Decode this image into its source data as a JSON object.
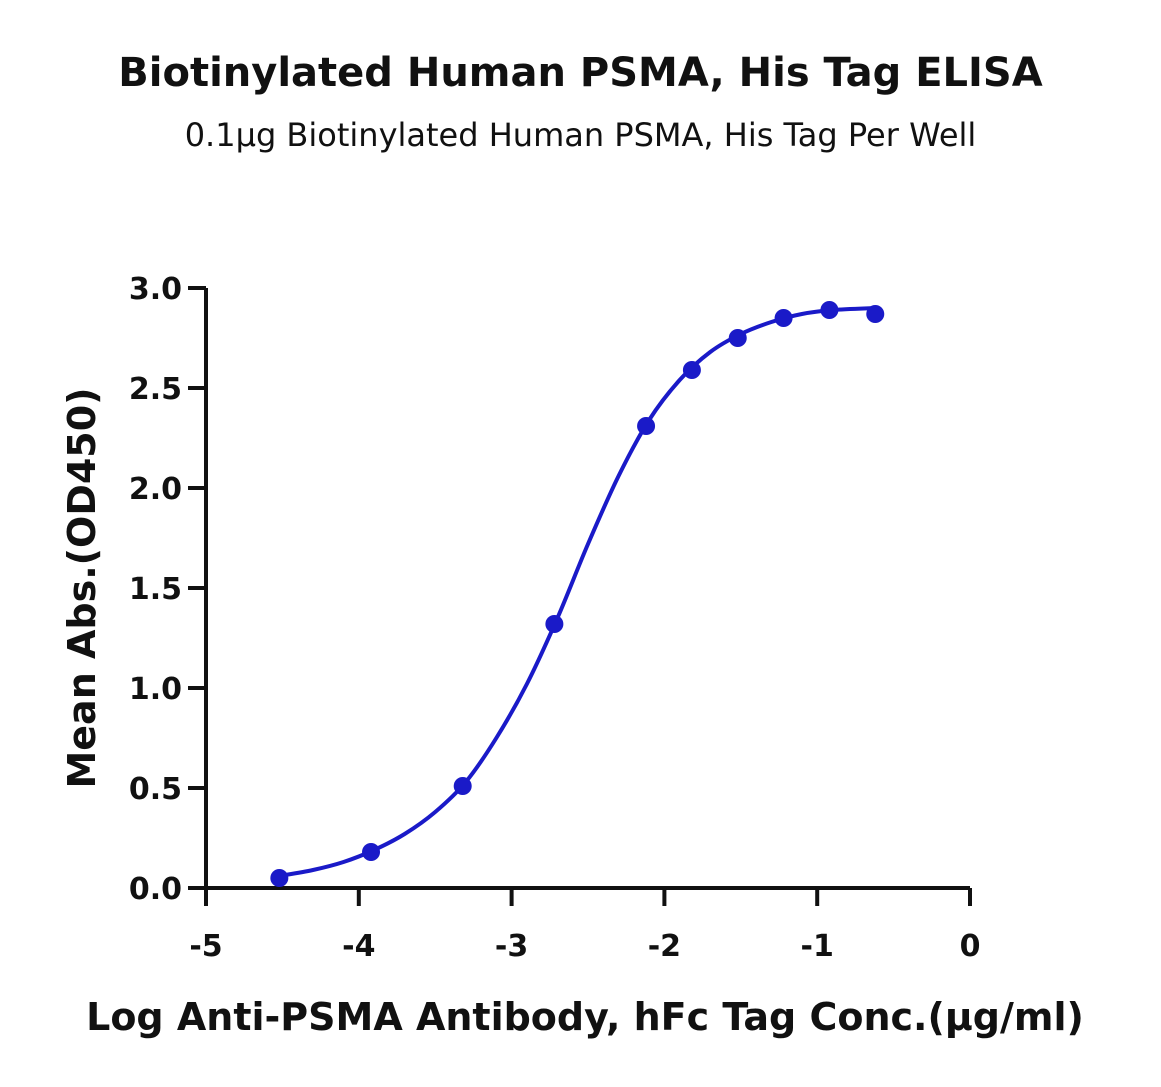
{
  "chart_data": {
    "type": "scatter",
    "title": "Biotinylated Human PSMA, His Tag ELISA",
    "subtitle": "0.1μg Biotinylated Human PSMA, His Tag Per Well",
    "xlabel": "Log Anti-PSMA Antibody, hFc Tag Conc.(μg/ml)",
    "ylabel": "Mean Abs.(OD450)",
    "xlim": [
      -5,
      0
    ],
    "ylim": [
      0,
      3.0
    ],
    "x_ticks": [
      -5,
      -4,
      -3,
      -2,
      -1,
      0
    ],
    "x_tick_labels": [
      "-5",
      "-4",
      "-3",
      "-2",
      "-1",
      "0"
    ],
    "y_ticks": [
      0,
      0.5,
      1.0,
      1.5,
      2.0,
      2.5,
      3.0
    ],
    "y_tick_labels": [
      "0.0",
      "0.5",
      "1.0",
      "1.5",
      "2.0",
      "2.5",
      "3.0"
    ],
    "grid": false,
    "legend": "none",
    "color": "#1a1ac8",
    "series": [
      {
        "x": [
          -4.52,
          -3.92,
          -3.32,
          -2.72,
          -2.12,
          -1.82,
          -1.52,
          -1.22,
          -0.92,
          -0.62
        ],
        "y": [
          0.05,
          0.18,
          0.51,
          1.32,
          2.31,
          2.59,
          2.75,
          2.85,
          2.89,
          2.87
        ]
      }
    ],
    "fit_curve": {
      "x": [
        -4.52,
        -4.3,
        -4.1,
        -3.9,
        -3.7,
        -3.5,
        -3.3,
        -3.1,
        -2.9,
        -2.7,
        -2.5,
        -2.3,
        -2.1,
        -1.9,
        -1.7,
        -1.5,
        -1.3,
        -1.1,
        -0.9,
        -0.62
      ],
      "y": [
        0.06,
        0.09,
        0.13,
        0.19,
        0.27,
        0.38,
        0.53,
        0.75,
        1.02,
        1.35,
        1.72,
        2.06,
        2.34,
        2.54,
        2.68,
        2.77,
        2.83,
        2.87,
        2.89,
        2.9
      ]
    }
  }
}
